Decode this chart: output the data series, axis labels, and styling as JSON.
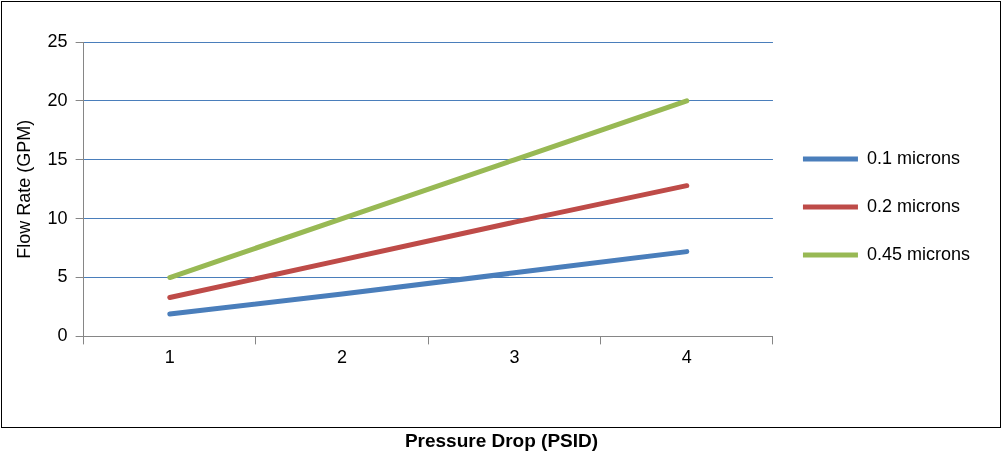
{
  "chart_data": {
    "type": "line",
    "xlabel": "Pressure Drop (PSID)",
    "ylabel": "Flow Rate (GPM)",
    "categories": [
      "1",
      "2",
      "3",
      "4"
    ],
    "series": [
      {
        "name": "0.1 microns",
        "color": "#4a7ebb",
        "values": [
          1.9,
          3.6,
          5.4,
          7.2
        ]
      },
      {
        "name": "0.2 microns",
        "color": "#be4b48",
        "values": [
          3.3,
          6.5,
          9.7,
          12.8
        ]
      },
      {
        "name": "0.45 microns",
        "color": "#98b954",
        "values": [
          5,
          10,
          15,
          20
        ]
      }
    ],
    "ylim": [
      0,
      25
    ],
    "yticks": [
      0,
      5,
      10,
      15,
      20,
      25
    ],
    "grid": "y",
    "legend": "right",
    "marker": "none",
    "line_style": "solid"
  }
}
